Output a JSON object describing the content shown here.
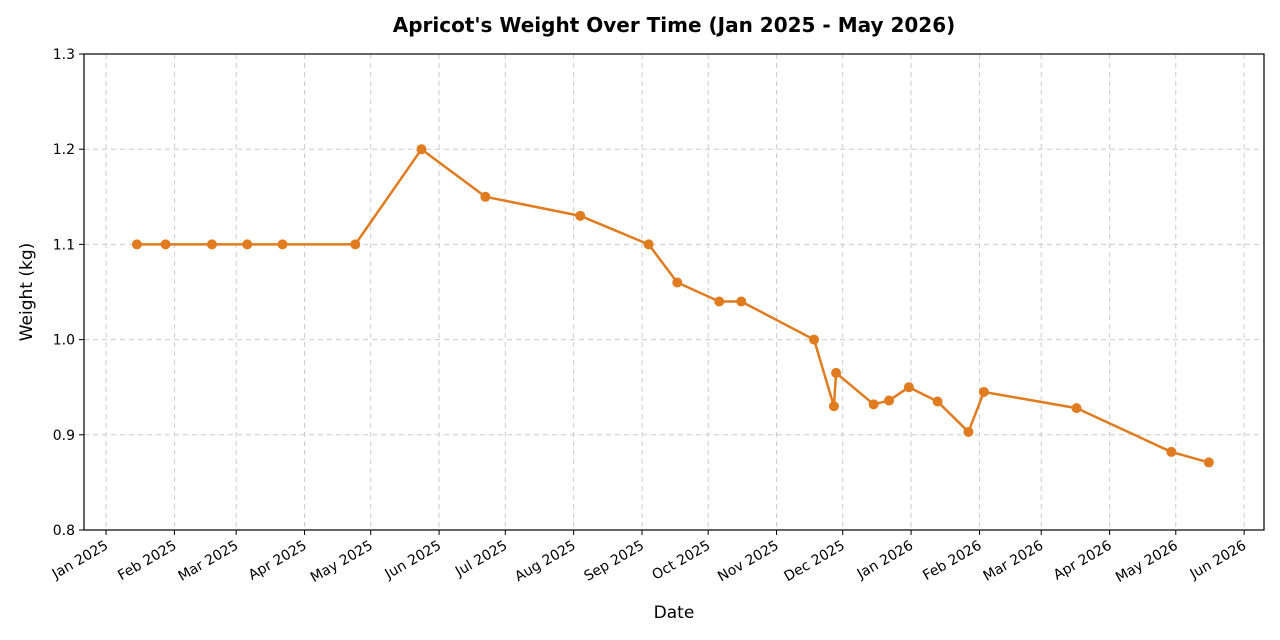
{
  "chart_data": {
    "type": "line",
    "title": "Apricot's Weight Over Time (Jan 2025 - May 2026)",
    "xlabel": "Date",
    "ylabel": "Weight (kg)",
    "xlim": [
      "2024-12-22",
      "2026-06-10"
    ],
    "ylim": [
      0.8,
      1.3
    ],
    "yticks": [
      0.8,
      0.9,
      1.0,
      1.1,
      1.2,
      1.3
    ],
    "ytick_labels": [
      "0.8",
      "0.9",
      "1.0",
      "1.1",
      "1.2",
      "1.3"
    ],
    "xticks": [
      {
        "date": "2025-01-01",
        "label": "Jan 2025"
      },
      {
        "date": "2025-02-01",
        "label": "Feb 2025"
      },
      {
        "date": "2025-03-01",
        "label": "Mar 2025"
      },
      {
        "date": "2025-04-01",
        "label": "Apr 2025"
      },
      {
        "date": "2025-05-01",
        "label": "May 2025"
      },
      {
        "date": "2025-06-01",
        "label": "Jun 2025"
      },
      {
        "date": "2025-07-01",
        "label": "Jul 2025"
      },
      {
        "date": "2025-08-01",
        "label": "Aug 2025"
      },
      {
        "date": "2025-09-01",
        "label": "Sep 2025"
      },
      {
        "date": "2025-10-01",
        "label": "Oct 2025"
      },
      {
        "date": "2025-11-01",
        "label": "Nov 2025"
      },
      {
        "date": "2025-12-01",
        "label": "Dec 2025"
      },
      {
        "date": "2026-01-01",
        "label": "Jan 2026"
      },
      {
        "date": "2026-02-01",
        "label": "Feb 2026"
      },
      {
        "date": "2026-03-01",
        "label": "Mar 2026"
      },
      {
        "date": "2026-04-01",
        "label": "Apr 2026"
      },
      {
        "date": "2026-05-01",
        "label": "May 2026"
      },
      {
        "date": "2026-06-01",
        "label": "Jun 2026"
      }
    ],
    "grid": true,
    "series": [
      {
        "color": "#e07b1f",
        "points": [
          {
            "x": "2025-01-15",
            "y": 1.1
          },
          {
            "x": "2025-01-28",
            "y": 1.1
          },
          {
            "x": "2025-02-18",
            "y": 1.1
          },
          {
            "x": "2025-03-06",
            "y": 1.1
          },
          {
            "x": "2025-03-22",
            "y": 1.1
          },
          {
            "x": "2025-04-24",
            "y": 1.1
          },
          {
            "x": "2025-05-24",
            "y": 1.2
          },
          {
            "x": "2025-06-22",
            "y": 1.15
          },
          {
            "x": "2025-08-04",
            "y": 1.13
          },
          {
            "x": "2025-09-04",
            "y": 1.1
          },
          {
            "x": "2025-09-17",
            "y": 1.06
          },
          {
            "x": "2025-10-06",
            "y": 1.04
          },
          {
            "x": "2025-10-16",
            "y": 1.04
          },
          {
            "x": "2025-11-18",
            "y": 1.0
          },
          {
            "x": "2025-11-27",
            "y": 0.93
          },
          {
            "x": "2025-11-28",
            "y": 0.965
          },
          {
            "x": "2025-12-15",
            "y": 0.932
          },
          {
            "x": "2025-12-22",
            "y": 0.936
          },
          {
            "x": "2025-12-31",
            "y": 0.95
          },
          {
            "x": "2026-01-13",
            "y": 0.935
          },
          {
            "x": "2026-01-27",
            "y": 0.903
          },
          {
            "x": "2026-02-03",
            "y": 0.945
          },
          {
            "x": "2026-03-17",
            "y": 0.928
          },
          {
            "x": "2026-04-29",
            "y": 0.882
          },
          {
            "x": "2026-05-16",
            "y": 0.871
          }
        ]
      }
    ]
  }
}
